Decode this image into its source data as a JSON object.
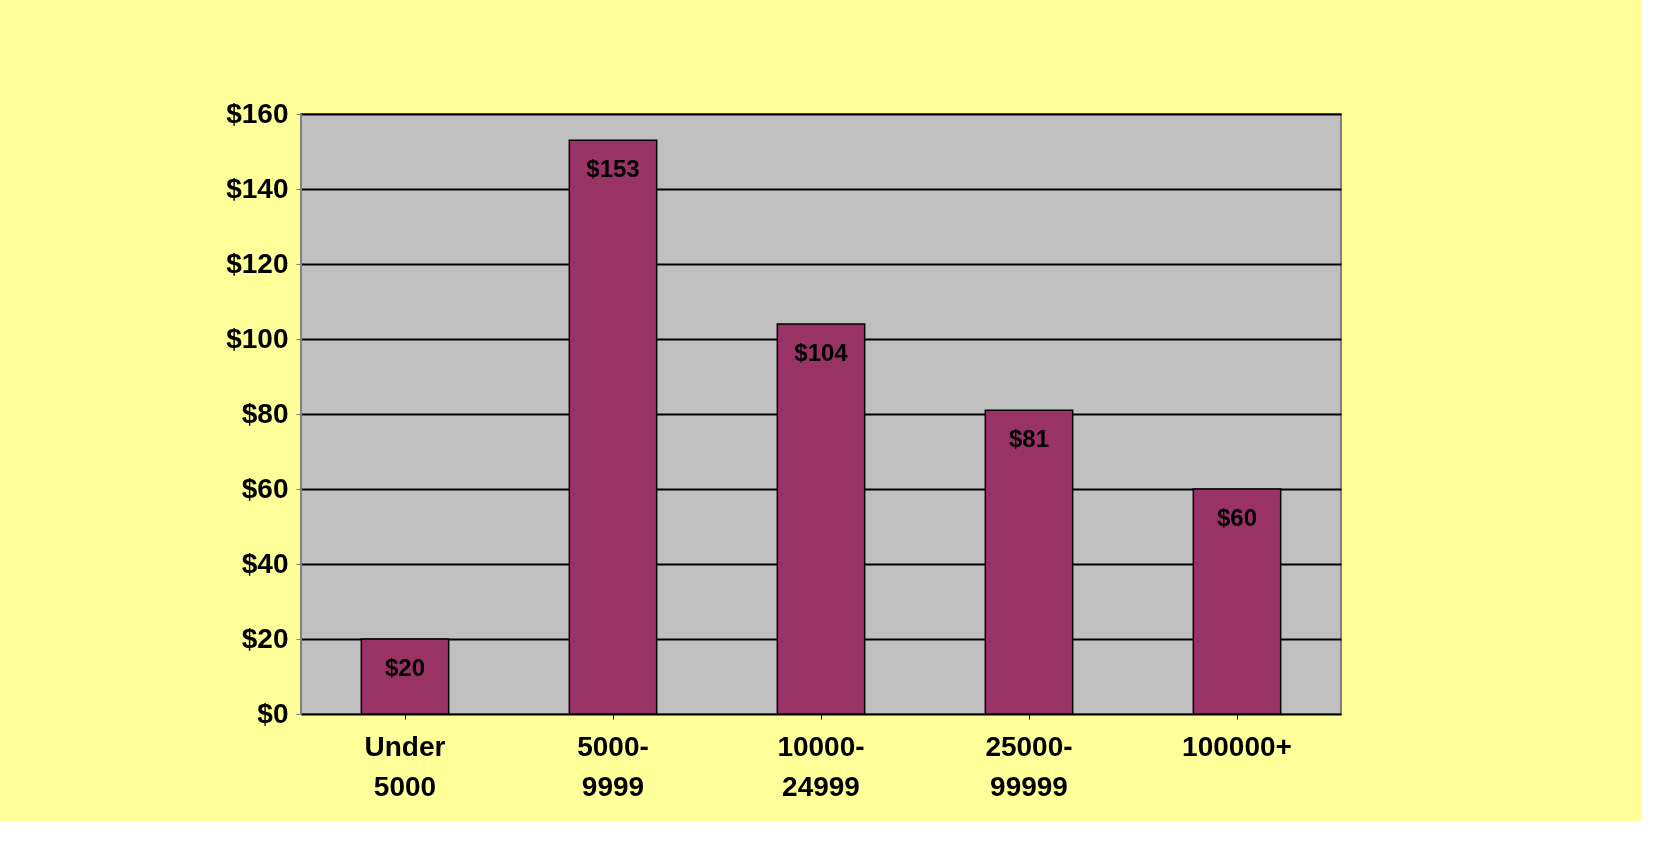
{
  "chart_data": {
    "type": "bar",
    "categories": [
      "Under\n5000",
      "5000-\n9999",
      "10000-\n24999",
      "25000-\n99999",
      "100000+"
    ],
    "values": [
      20,
      153,
      104,
      81,
      60
    ],
    "value_labels": [
      "$20",
      "$153",
      "$104",
      "$81",
      "$60"
    ],
    "color": "#993366",
    "ylim": [
      0,
      160
    ],
    "yticks": [
      {
        "value": 0,
        "label": "$0"
      },
      {
        "value": 20,
        "label": "$20"
      },
      {
        "value": 40,
        "label": "$40"
      },
      {
        "value": 60,
        "label": "$60"
      },
      {
        "value": 80,
        "label": "$80"
      },
      {
        "value": 100,
        "label": "$100"
      },
      {
        "value": 120,
        "label": "$120"
      },
      {
        "value": 140,
        "label": "$140"
      },
      {
        "value": 160,
        "label": "$160"
      }
    ],
    "grid": "y"
  }
}
